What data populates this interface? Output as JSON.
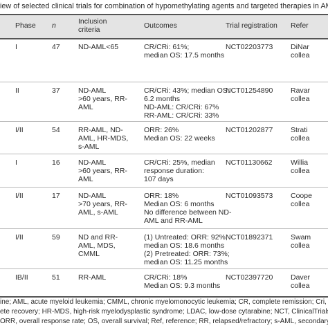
{
  "title": "iew of selected clinical trials for combination of hypomethylating agents and targeted therapies in AML",
  "table": {
    "header": [
      [
        "Phase"
      ],
      [
        "n"
      ],
      [
        "Inclusion",
        "criteria"
      ],
      [
        "Outcomes"
      ],
      [
        "Trial registration"
      ],
      [
        "Refer"
      ]
    ],
    "rows": [
      [
        [
          "I"
        ],
        [
          "47"
        ],
        [
          "ND-AML<65"
        ],
        [
          "CR/CRi: 61%;",
          "median OS: 17.5 months"
        ],
        [
          "NCT02203773"
        ],
        [
          "DiNar",
          "collea"
        ]
      ],
      [
        [
          "II"
        ],
        [
          "37"
        ],
        [
          "ND-AML",
          ">60 years, RR-",
          "AML"
        ],
        [
          "CR/CRi: 43%; median OS:",
          "6.2 months",
          "ND-AML: CR/CRi: 67%",
          "RR-AML: CR/CRi: 33%"
        ],
        [
          "NCT01254890"
        ],
        [
          "Ravar",
          "collea"
        ]
      ],
      [
        [
          "I/II"
        ],
        [
          "54"
        ],
        [
          "RR-AML, ND-",
          "AML, HR-MDS,",
          "s-AML"
        ],
        [
          "ORR: 26%",
          "Median OS: 22 weeks"
        ],
        [
          "NCT01202877"
        ],
        [
          "Strati",
          "collea"
        ]
      ],
      [
        [
          "I"
        ],
        [
          "16"
        ],
        [
          "ND-AML",
          ">60 years, RR-",
          "AML"
        ],
        [
          "CR/CRi: 25%, median",
          "response duration:",
          "107 days"
        ],
        [
          "NCT01130662"
        ],
        [
          "Willia",
          "collea"
        ]
      ],
      [
        [
          "I/II"
        ],
        [
          "17"
        ],
        [
          "ND-AML",
          ">70 years, RR-",
          "AML, s-AML"
        ],
        [
          "ORR: 18%",
          "Median OS: 6 months",
          "No difference between ND-",
          "AML and RR-AML"
        ],
        [
          "NCT01093573"
        ],
        [
          "Coope",
          "collea"
        ]
      ],
      [
        [
          "I/II"
        ],
        [
          "59"
        ],
        [
          "ND and RR-",
          "AML, MDS,",
          "CMML"
        ],
        [
          "(1) Untreated: ORR: 92%,",
          "median OS: 18.6 months",
          "(2) Pretreated: ORR: 73%;",
          "median OS: 11.25 months"
        ],
        [
          "NCT01892371"
        ],
        [
          "Swam",
          "collea"
        ]
      ],
      [
        [
          "IB/II"
        ],
        [
          "51"
        ],
        [
          "RR-AML"
        ],
        [
          "CR/CRi: 18%",
          "Median OS: 9.3 months"
        ],
        [
          "NCT02397720"
        ],
        [
          "Daver",
          "collea"
        ]
      ]
    ]
  },
  "footnotes": [
    "ine; AML, acute myeloid leukemia; CMML, chronic myelomonocytic leukemia; CR, complete remission; Cri, complete",
    "ete recovery; HR-MDS, high-risk myelodysplastic syndrome; LDAC, low-dose cytarabine; NCT, ClinicalTrials.gov",
    "ORR, overall response rate; OS, overall survival; Ref, reference; RR, relapsed/refractory; s-AML, secondary AML."
  ]
}
